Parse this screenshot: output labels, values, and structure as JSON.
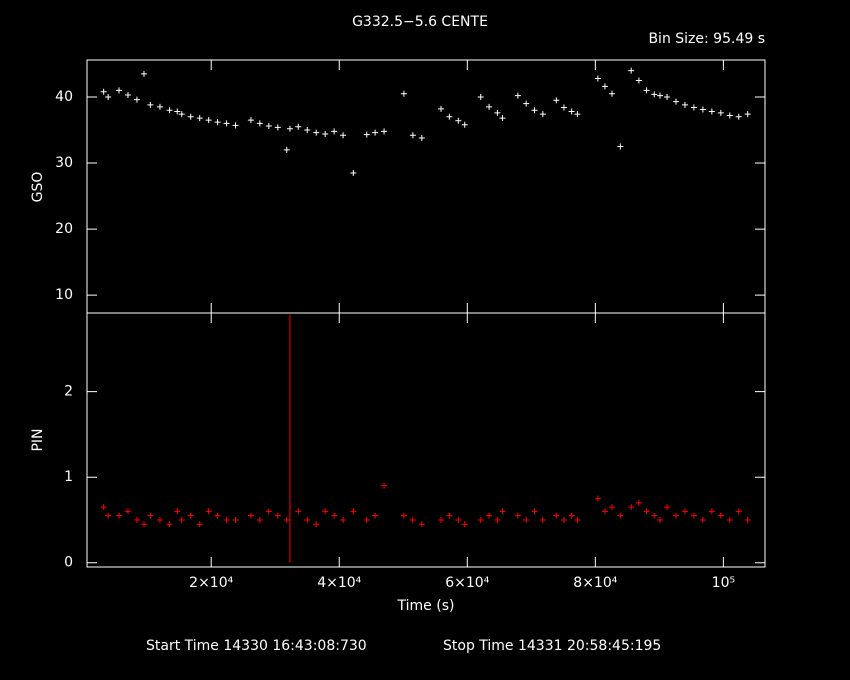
{
  "title": "G332.5−5.6 CENTE",
  "bin_size": "Bin Size: 95.49 s",
  "start_time": "Start Time 14330 16:43:08:730",
  "stop_time": "Stop Time 14331 20:58:45:195",
  "chart_data": [
    {
      "type": "scatter",
      "y_label": "GSO",
      "color": "#ffffff",
      "xlim": [
        600,
        106500
      ],
      "ylim": [
        7.3,
        45.6
      ],
      "xticks": [
        {
          "value": 20000,
          "label": "2×10⁴"
        },
        {
          "value": 40000,
          "label": "4×10⁴"
        },
        {
          "value": 60000,
          "label": "6×10⁴"
        },
        {
          "value": 80000,
          "label": "8×10⁴"
        },
        {
          "value": 100000,
          "label": "10⁵"
        }
      ],
      "yticks": [
        10,
        20,
        30,
        40
      ],
      "x": [
        3200,
        3900,
        5600,
        7000,
        8400,
        9500,
        10500,
        12000,
        13500,
        14700,
        15400,
        16800,
        18200,
        19600,
        21000,
        22400,
        23800,
        26200,
        27600,
        29000,
        30400,
        31800,
        32300,
        33600,
        35000,
        36400,
        37800,
        39200,
        40600,
        42200,
        44300,
        45600,
        47000,
        50100,
        51500,
        52900,
        55900,
        57200,
        58600,
        59600,
        62100,
        63400,
        64700,
        65500,
        67900,
        69200,
        70500,
        71800,
        73900,
        75100,
        76300,
        77200,
        80400,
        81500,
        82600,
        83900,
        85600,
        86800,
        88000,
        89200,
        90100,
        91200,
        92600,
        94000,
        95400,
        96800,
        98200,
        99600,
        101000,
        102400,
        103800
      ],
      "values": [
        40.8,
        40.0,
        41.0,
        40.3,
        39.6,
        43.5,
        38.8,
        38.5,
        38.0,
        37.8,
        37.4,
        37.0,
        36.8,
        36.5,
        36.2,
        36.0,
        35.7,
        36.5,
        36.0,
        35.6,
        35.4,
        32.0,
        35.2,
        35.5,
        35.0,
        34.6,
        34.4,
        34.8,
        34.2,
        28.5,
        34.3,
        34.6,
        34.8,
        40.5,
        34.2,
        33.8,
        38.2,
        37.0,
        36.4,
        35.8,
        40.0,
        38.5,
        37.6,
        36.8,
        40.2,
        39.0,
        38.0,
        37.4,
        39.5,
        38.4,
        37.8,
        37.4,
        42.8,
        41.6,
        40.5,
        32.5,
        44.0,
        42.5,
        41.0,
        40.4,
        40.2,
        40.0,
        39.3,
        38.8,
        38.4,
        38.1,
        37.8,
        37.6,
        37.2,
        37.0,
        37.4
      ]
    },
    {
      "type": "scatter",
      "y_label": "PIN",
      "x_label": "Time (s)",
      "color": "#ff0000",
      "xlim": [
        600,
        106500
      ],
      "ylim": [
        -0.05,
        2.92
      ],
      "xticks": [
        {
          "value": 20000,
          "label": "2×10⁴"
        },
        {
          "value": 40000,
          "label": "4×10⁴"
        },
        {
          "value": 60000,
          "label": "6×10⁴"
        },
        {
          "value": 80000,
          "label": "8×10⁴"
        },
        {
          "value": 100000,
          "label": "10⁵"
        }
      ],
      "yticks": [
        0,
        1,
        2
      ],
      "x": [
        3200,
        3900,
        5600,
        7000,
        8400,
        9500,
        10500,
        12000,
        13500,
        14700,
        15400,
        16800,
        18200,
        19600,
        21000,
        22400,
        23800,
        26200,
        27600,
        29000,
        30400,
        31800,
        32300,
        33600,
        35000,
        36400,
        37800,
        39200,
        40600,
        42200,
        44300,
        45600,
        47000,
        50100,
        51500,
        52900,
        55900,
        57200,
        58600,
        59600,
        62100,
        63400,
        64700,
        65500,
        67900,
        69200,
        70500,
        71800,
        73900,
        75100,
        76300,
        77200,
        80400,
        81500,
        82600,
        83900,
        85600,
        86800,
        88000,
        89200,
        90100,
        91200,
        92600,
        94000,
        95400,
        96800,
        98200,
        99600,
        101000,
        102400,
        103800
      ],
      "values": [
        0.65,
        0.55,
        0.55,
        0.6,
        0.5,
        0.45,
        0.55,
        0.5,
        0.45,
        0.6,
        0.5,
        0.55,
        0.45,
        0.6,
        0.55,
        0.5,
        0.5,
        0.55,
        0.5,
        0.6,
        0.55,
        0.5,
        2.9,
        0.6,
        0.5,
        0.45,
        0.6,
        0.55,
        0.5,
        0.6,
        0.5,
        0.55,
        0.9,
        0.55,
        0.5,
        0.45,
        0.5,
        0.55,
        0.5,
        0.45,
        0.5,
        0.55,
        0.5,
        0.6,
        0.55,
        0.5,
        0.6,
        0.5,
        0.55,
        0.5,
        0.55,
        0.5,
        0.75,
        0.6,
        0.65,
        0.55,
        0.65,
        0.7,
        0.6,
        0.55,
        0.5,
        0.65,
        0.55,
        0.6,
        0.55,
        0.5,
        0.6,
        0.55,
        0.5,
        0.6,
        0.5
      ]
    }
  ]
}
